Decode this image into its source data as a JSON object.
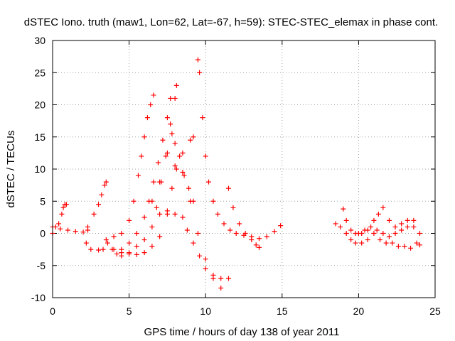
{
  "chart_data": {
    "type": "scatter",
    "title": "dSTEC Iono. truth (maw1, Lon=62, Lat=-67, h=59): STEC-STEC_elemax in phase cont.",
    "xlabel": "GPS time / hours of day 138 of year 2011",
    "ylabel": "dSTEC  / TECUs",
    "xlim": [
      0,
      25
    ],
    "ylim": [
      -10,
      30
    ],
    "xticks": [
      "0",
      "5",
      "10",
      "15",
      "20",
      "25"
    ],
    "yticks": [
      "-10",
      "-5",
      "0",
      "5",
      "10",
      "15",
      "20",
      "25",
      "30"
    ],
    "grid": true,
    "marker": "+",
    "color": "#ff0000",
    "series": [
      {
        "x": [
          0.0,
          0.2,
          0.4,
          0.6,
          0.7,
          0.8,
          0.9
        ],
        "y": [
          0.0,
          1.0,
          1.5,
          3.0,
          4.0,
          4.5,
          4.5
        ]
      },
      {
        "x": [
          0.0,
          0.5,
          1.0,
          1.5,
          2.0,
          2.3
        ],
        "y": [
          1.0,
          0.7,
          0.5,
          0.3,
          0.2,
          0.5
        ]
      },
      {
        "x": [
          2.3,
          2.7,
          3.0,
          3.2,
          3.4,
          3.5
        ],
        "y": [
          1.0,
          3.0,
          4.5,
          6.0,
          7.5,
          8.0
        ]
      },
      {
        "x": [
          2.2,
          2.5,
          3.0,
          3.3,
          3.6,
          3.9,
          4.2,
          4.5
        ],
        "y": [
          -1.5,
          -2.5,
          -2.6,
          -2.5,
          -1.5,
          -2.5,
          -3.2,
          -3.5
        ]
      },
      {
        "x": [
          3.5,
          4.0,
          4.5,
          5.0,
          5.3,
          5.6,
          5.8,
          6.0,
          6.2,
          6.4,
          6.6
        ],
        "y": [
          -1.0,
          -0.5,
          0.0,
          2.0,
          5.0,
          9.0,
          12.0,
          15.0,
          18.0,
          20.0,
          21.5
        ]
      },
      {
        "x": [
          4.5,
          5.0,
          5.5,
          6.0,
          6.3,
          6.6,
          6.9,
          7.2,
          7.5,
          7.7
        ],
        "y": [
          -2.5,
          -1.5,
          0.0,
          2.5,
          5.0,
          8.0,
          11.0,
          14.5,
          18.0,
          21.0
        ]
      },
      {
        "x": [
          5.0,
          5.5,
          6.0,
          6.5,
          6.8,
          7.1,
          7.4,
          7.7,
          8.0,
          8.1
        ],
        "y": [
          -3.0,
          -2.0,
          -1.0,
          1.0,
          4.0,
          8.0,
          12.0,
          17.0,
          21.0,
          23.0
        ]
      },
      {
        "x": [
          4.0,
          4.5,
          5.0,
          5.5,
          6.0,
          6.5,
          7.0,
          7.5,
          7.8,
          8.1,
          8.5,
          9.0,
          9.2
        ],
        "y": [
          -2.5,
          -3.0,
          -3.2,
          -3.3,
          -3.0,
          -2.0,
          -0.5,
          3.0,
          7.0,
          10.0,
          12.5,
          14.5,
          15.0
        ]
      },
      {
        "x": [
          6.5,
          7.0,
          7.5,
          7.8,
          8.0,
          8.3,
          8.6,
          9.0,
          9.5,
          10.0,
          10.5,
          11.0
        ],
        "y": [
          5.0,
          8.0,
          12.5,
          15.5,
          14.0,
          12.0,
          9.0,
          5.0,
          0.0,
          -4.0,
          -7.0,
          -8.5
        ]
      },
      {
        "x": [
          7.0,
          7.5,
          8.0,
          8.5,
          8.8,
          9.2,
          9.6,
          10.0,
          10.5,
          11.0,
          11.5
        ],
        "y": [
          3.0,
          3.5,
          3.0,
          2.5,
          0.5,
          -1.5,
          -3.5,
          -5.5,
          -6.5,
          -7.0,
          -7.0
        ]
      },
      {
        "x": [
          8.0,
          8.5,
          8.9,
          9.2
        ],
        "y": [
          10.5,
          9.5,
          7.0,
          5.0
        ]
      },
      {
        "x": [
          9.5,
          9.6,
          9.8,
          10.0,
          10.2,
          10.5,
          10.8,
          11.2,
          11.6,
          12.0,
          12.5,
          13.0,
          13.5,
          14.0,
          14.5,
          14.9
        ],
        "y": [
          27.0,
          25.0,
          18.0,
          12.0,
          8.0,
          5.0,
          3.0,
          1.5,
          0.5,
          0.0,
          -0.3,
          -0.5,
          -0.8,
          -0.5,
          0.3,
          1.2
        ]
      },
      {
        "x": [
          11.5,
          11.8,
          12.2,
          12.6,
          13.0,
          13.3,
          13.5
        ],
        "y": [
          7.0,
          4.0,
          1.5,
          0.0,
          -1.0,
          -1.8,
          -2.2
        ]
      },
      {
        "x": [
          18.5,
          18.8,
          19.2,
          19.5,
          19.8,
          20.2,
          20.6,
          21.0,
          21.4,
          21.8,
          22.2,
          22.6,
          23.0,
          23.4,
          23.8,
          24.0
        ],
        "y": [
          1.5,
          1.0,
          0.0,
          -1.0,
          -1.5,
          -1.5,
          -1.0,
          0.0,
          -1.0,
          -1.5,
          -1.5,
          -2.0,
          -2.0,
          -2.3,
          -1.5,
          -1.8
        ]
      },
      {
        "x": [
          19.0,
          19.2,
          19.5,
          19.8,
          20.2,
          20.6,
          21.0,
          21.3,
          21.6,
          22.0,
          22.4,
          22.8,
          23.2,
          23.6,
          24.0
        ],
        "y": [
          3.8,
          2.0,
          0.5,
          0.0,
          0.0,
          0.5,
          2.0,
          3.0,
          4.0,
          2.0,
          1.0,
          1.5,
          2.0,
          1.0,
          0.0
        ]
      },
      {
        "x": [
          20.0,
          20.4,
          20.8,
          21.2,
          21.6,
          22.0,
          22.4,
          22.8,
          23.2,
          23.6
        ],
        "y": [
          0.0,
          0.5,
          1.0,
          0.5,
          0.0,
          -0.5,
          0.0,
          0.5,
          1.0,
          2.0
        ]
      }
    ]
  }
}
